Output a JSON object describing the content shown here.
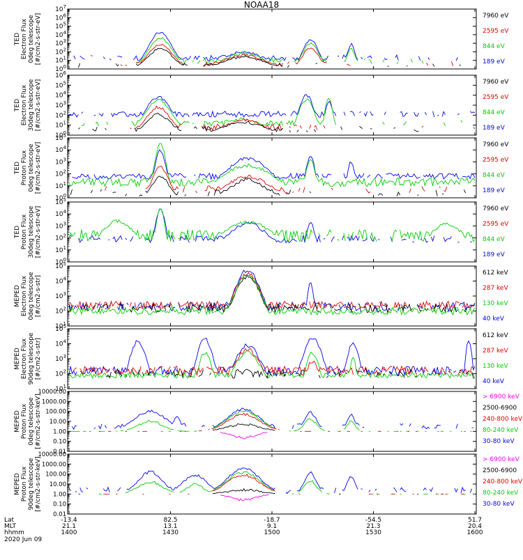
{
  "title": "NOAA18",
  "date": "2020 Jun 09",
  "axis_rows": [
    {
      "name": "Lat",
      "values": [
        "-13.4",
        "82.5",
        "-18.7",
        "-54.5",
        "51.7"
      ]
    },
    {
      "name": "MLT",
      "values": [
        "21.1",
        "13.1",
        "9.1",
        "21.3",
        "20.4"
      ]
    },
    {
      "name": "hhmm",
      "values": [
        "1400",
        "1430",
        "1500",
        "1530",
        "1600"
      ]
    }
  ],
  "colors": {
    "black": "#000000",
    "red": "#dd0000",
    "green": "#00cc00",
    "blue": "#0000ee",
    "magenta": "#ee00ee"
  },
  "chart_data": [
    {
      "type": "line",
      "ylabel": [
        "TED",
        "Electron Flux",
        "0deg telescope",
        "[#/cm2-s-str-eV]"
      ],
      "log": true,
      "ylim_exp": [
        0,
        7
      ],
      "ticks": [
        "10^0",
        "10^1",
        "10^2",
        "10^3",
        "10^4",
        "10^5",
        "10^6",
        "10^7"
      ],
      "legend": [
        {
          "label": "7960 eV",
          "color": "#000000"
        },
        {
          "label": "2595 eV",
          "color": "#dd0000"
        },
        {
          "label": "844 eV",
          "color": "#00cc00"
        },
        {
          "label": "189 eV",
          "color": "#0000ee"
        }
      ],
      "series": [
        {
          "color": "#0000ee",
          "base": 1.3,
          "noise": 0.35,
          "density": 0.5,
          "peaks": [
            [
              0.225,
              4.3,
              0.03
            ],
            [
              0.595,
              3.4,
              0.02
            ],
            [
              0.695,
              2.9,
              0.01
            ],
            [
              0.43,
              2.0,
              0.05
            ]
          ]
        },
        {
          "color": "#00cc00",
          "base": 0.9,
          "noise": 0.35,
          "density": 0.3,
          "peaks": [
            [
              0.225,
              3.6,
              0.03
            ],
            [
              0.595,
              3.0,
              0.02
            ],
            [
              0.695,
              2.4,
              0.01
            ],
            [
              0.43,
              1.8,
              0.05
            ]
          ]
        },
        {
          "color": "#dd0000",
          "base": 0.6,
          "noise": 0.3,
          "density": 0.2,
          "peaks": [
            [
              0.225,
              2.9,
              0.03
            ],
            [
              0.595,
              2.5,
              0.02
            ],
            [
              0.43,
              1.6,
              0.05
            ]
          ]
        },
        {
          "color": "#000000",
          "base": 0.4,
          "noise": 0.3,
          "density": 0.25,
          "peaks": [
            [
              0.225,
              2.4,
              0.03
            ],
            [
              0.43,
              1.4,
              0.05
            ]
          ]
        }
      ]
    },
    {
      "type": "line",
      "ylabel": [
        "TED",
        "Electron Flux",
        "30deg telescope",
        "[#/cm2-s-str-eV]"
      ],
      "log": true,
      "ylim_exp": [
        0,
        6
      ],
      "ticks": [
        "10^0",
        "10^1",
        "10^2",
        "10^3",
        "10^4",
        "10^5",
        "10^6"
      ],
      "legend": [
        {
          "label": "7960 eV",
          "color": "#000000"
        },
        {
          "label": "2595 eV",
          "color": "#dd0000"
        },
        {
          "label": "844 eV",
          "color": "#00cc00"
        },
        {
          "label": "189 eV",
          "color": "#0000ee"
        }
      ],
      "series": [
        {
          "color": "#0000ee",
          "base": 2.1,
          "noise": 0.3,
          "density": 0.7,
          "peaks": [
            [
              0.22,
              3.8,
              0.035
            ],
            [
              0.585,
              4.0,
              0.02
            ],
            [
              0.64,
              3.4,
              0.01
            ],
            [
              0.43,
              1.8,
              0.05
            ]
          ]
        },
        {
          "color": "#00cc00",
          "base": 1.2,
          "noise": 0.3,
          "density": 0.35,
          "peaks": [
            [
              0.22,
              3.5,
              0.035
            ],
            [
              0.585,
              3.6,
              0.02
            ],
            [
              0.64,
              3.7,
              0.01
            ],
            [
              0.43,
              1.6,
              0.05
            ]
          ]
        },
        {
          "color": "#dd0000",
          "base": 0.8,
          "noise": 0.3,
          "density": 0.2,
          "peaks": [
            [
              0.22,
              2.8,
              0.03
            ],
            [
              0.43,
              1.5,
              0.05
            ]
          ]
        },
        {
          "color": "#000000",
          "base": 0.6,
          "noise": 0.3,
          "density": 0.35,
          "peaks": [
            [
              0.22,
              2.1,
              0.03
            ],
            [
              0.43,
              1.3,
              0.05
            ]
          ]
        }
      ]
    },
    {
      "type": "line",
      "ylabel": [
        "TED",
        "Proton Flux",
        "0deg telescope",
        "[#/cm2-s-str-eV]"
      ],
      "log": true,
      "ylim_exp": [
        0,
        5
      ],
      "ticks": [
        "10^0",
        "10^1",
        "10^2",
        "10^3",
        "10^4",
        "10^5"
      ],
      "legend": [
        {
          "label": "7960 eV",
          "color": "#000000"
        },
        {
          "label": "2595 eV",
          "color": "#dd0000"
        },
        {
          "label": "844 eV",
          "color": "#00cc00"
        },
        {
          "label": "189 eV",
          "color": "#0000ee"
        }
      ],
      "series": [
        {
          "color": "#0000ee",
          "base": 1.8,
          "noise": 0.25,
          "density": 0.9,
          "peaks": [
            [
              0.225,
              4.0,
              0.015
            ],
            [
              0.44,
              3.3,
              0.06
            ],
            [
              0.595,
              3.5,
              0.012
            ],
            [
              0.695,
              3.0,
              0.01
            ]
          ]
        },
        {
          "color": "#00cc00",
          "base": 1.3,
          "noise": 0.35,
          "density": 1.0,
          "peaks": [
            [
              0.225,
              4.6,
              0.015
            ],
            [
              0.44,
              2.7,
              0.07
            ],
            [
              0.595,
              3.2,
              0.012
            ]
          ]
        },
        {
          "color": "#dd0000",
          "base": 0.7,
          "noise": 0.3,
          "density": 0.3,
          "peaks": [
            [
              0.225,
              2.6,
              0.02
            ],
            [
              0.44,
              1.8,
              0.05
            ]
          ]
        },
        {
          "color": "#000000",
          "base": 0.4,
          "noise": 0.3,
          "density": 0.25,
          "peaks": [
            [
              0.225,
              1.8,
              0.02
            ],
            [
              0.44,
              1.5,
              0.04
            ]
          ]
        }
      ]
    },
    {
      "type": "line",
      "ylabel": [
        "TED",
        "Proton Flux",
        "30deg telescope",
        "[#/cm2-s-str-eV]"
      ],
      "log": true,
      "ylim_exp": [
        0,
        5
      ],
      "ticks": [
        "10^0",
        "10^1",
        "10^2",
        "10^3",
        "10^4",
        "10^5"
      ],
      "legend": [
        {
          "label": "7960 eV",
          "color": "#000000"
        },
        {
          "label": "2595 eV",
          "color": "#dd0000"
        },
        {
          "label": "844 eV",
          "color": "#00cc00"
        },
        {
          "label": "189 eV",
          "color": "#0000ee"
        }
      ],
      "series": [
        {
          "color": "#0000ee",
          "base": 1.9,
          "noise": 0.3,
          "density": 0.6,
          "peaks": [
            [
              0.225,
              4.4,
              0.015
            ],
            [
              0.44,
              3.2,
              0.06
            ],
            [
              0.595,
              3.3,
              0.012
            ]
          ]
        },
        {
          "color": "#00cc00",
          "base": 2.2,
          "noise": 0.5,
          "density": 0.7,
          "peaks": [
            [
              0.12,
              3.4,
              0.05
            ],
            [
              0.225,
              4.6,
              0.012
            ],
            [
              0.44,
              3.3,
              0.08
            ],
            [
              0.93,
              3.2,
              0.05
            ]
          ]
        },
        {
          "color": "#000000",
          "base": 0.3,
          "noise": 0.2,
          "density": 0.02,
          "peaks": []
        }
      ]
    },
    {
      "type": "line",
      "ylabel": [
        "MEPED",
        "Electron Flux",
        "0deg telescope",
        "[#/cm2-s-str]"
      ],
      "log": true,
      "ylim_exp": [
        1,
        5
      ],
      "ticks": [
        "10^1",
        "10^2",
        "10^3",
        "10^4",
        "10^5"
      ],
      "legend": [
        {
          "label": "612 keV",
          "color": "#000000"
        },
        {
          "label": "287 keV",
          "color": "#dd0000"
        },
        {
          "label": "130 keV",
          "color": "#00cc00"
        },
        {
          "label": "40 keV",
          "color": "#0000ee"
        }
      ],
      "series": [
        {
          "color": "#0000ee",
          "base": 2.3,
          "noise": 0.3,
          "density": 0.8,
          "peaks": [
            [
              0.44,
              4.7,
              0.04
            ],
            [
              0.595,
              4.0,
              0.01
            ]
          ]
        },
        {
          "color": "#dd0000",
          "base": 2.4,
          "noise": 0.25,
          "density": 0.9,
          "peaks": [
            [
              0.44,
              4.5,
              0.04
            ]
          ]
        },
        {
          "color": "#000000",
          "base": 2.2,
          "noise": 0.3,
          "density": 0.8,
          "peaks": [
            [
              0.44,
              4.3,
              0.04
            ]
          ]
        },
        {
          "color": "#00cc00",
          "base": 2.0,
          "noise": 0.25,
          "density": 1.0,
          "peaks": [
            [
              0.44,
              4.4,
              0.04
            ]
          ]
        }
      ]
    },
    {
      "type": "line",
      "ylabel": [
        "MEPED",
        "Electron Flux",
        "90deg telescope",
        "[#/cm2-s-str]"
      ],
      "log": true,
      "ylim_exp": [
        1,
        5
      ],
      "ticks": [
        "10^1",
        "10^2",
        "10^3",
        "10^4",
        "10^5"
      ],
      "legend": [
        {
          "label": "612 keV",
          "color": "#000000"
        },
        {
          "label": "287 keV",
          "color": "#dd0000"
        },
        {
          "label": "130 keV",
          "color": "#00cc00"
        },
        {
          "label": "40 keV",
          "color": "#0000ee"
        }
      ],
      "series": [
        {
          "color": "#0000ee",
          "base": 2.2,
          "noise": 0.3,
          "density": 0.9,
          "peaks": [
            [
              0.17,
              4.2,
              0.025
            ],
            [
              0.335,
              4.3,
              0.025
            ],
            [
              0.44,
              3.9,
              0.04
            ],
            [
              0.6,
              4.4,
              0.03
            ],
            [
              0.7,
              4.0,
              0.02
            ],
            [
              0.985,
              4.2,
              0.01
            ]
          ]
        },
        {
          "color": "#dd0000",
          "base": 2.2,
          "noise": 0.3,
          "density": 0.9,
          "peaks": [
            [
              0.44,
              3.6,
              0.04
            ],
            [
              0.6,
              2.8,
              0.02
            ]
          ]
        },
        {
          "color": "#00cc00",
          "base": 1.9,
          "noise": 0.2,
          "density": 1.0,
          "peaks": [
            [
              0.335,
              3.4,
              0.02
            ],
            [
              0.44,
              3.4,
              0.04
            ],
            [
              0.6,
              3.4,
              0.02
            ],
            [
              0.7,
              3.1,
              0.01
            ]
          ]
        },
        {
          "color": "#000000",
          "base": 2.0,
          "noise": 0.3,
          "density": 0.5,
          "peaks": [
            [
              0.44,
              2.3,
              0.02
            ]
          ]
        }
      ]
    },
    {
      "type": "line",
      "ylabel": [
        "MEPED",
        "Proton Flux",
        "0deg telescope",
        "[#/cm2-s-str-keV]"
      ],
      "log": true,
      "ylim_exp": [
        -2,
        4
      ],
      "ticks": [
        "0.01",
        "0.10",
        "1.00",
        "10.00",
        "100.00",
        "1000.00",
        "10000.00"
      ],
      "legend": [
        {
          "label": "> 6900 keV",
          "color": "#ee00ee"
        },
        {
          "label": "2500-6900",
          "color": "#000000"
        },
        {
          "label": "240-800 keV",
          "color": "#dd0000"
        },
        {
          "label": "80-240 keV",
          "color": "#00cc00"
        },
        {
          "label": "30-80 keV",
          "color": "#0000ee"
        }
      ],
      "series": [
        {
          "color": "#0000ee",
          "base": 0.5,
          "noise": 0.3,
          "density": 0.4,
          "peaks": [
            [
              0.2,
              2.0,
              0.04
            ],
            [
              0.265,
              1.4,
              0.01
            ],
            [
              0.43,
              2.2,
              0.04
            ],
            [
              0.595,
              1.9,
              0.015
            ],
            [
              0.695,
              1.6,
              0.01
            ]
          ]
        },
        {
          "color": "#00cc00",
          "base": -0.3,
          "noise": 0.25,
          "density": 0.5,
          "peaks": [
            [
              0.2,
              1.0,
              0.03
            ],
            [
              0.43,
              2.0,
              0.04
            ],
            [
              0.595,
              1.2,
              0.015
            ],
            [
              0.695,
              1.0,
              0.01
            ]
          ]
        },
        {
          "color": "#dd0000",
          "base": -0.9,
          "noise": 0.2,
          "density": 0.3,
          "peaks": [
            [
              0.43,
              1.7,
              0.04
            ]
          ]
        },
        {
          "color": "#000000",
          "base": -1.5,
          "noise": 0.2,
          "density": 0.1,
          "peaks": [
            [
              0.43,
              0.7,
              0.04
            ]
          ]
        },
        {
          "color": "#ee00ee",
          "base": -1.9,
          "noise": 0.2,
          "density": 0.05,
          "peaks": [
            [
              0.43,
              -0.6,
              0.03
            ]
          ]
        }
      ]
    },
    {
      "type": "line",
      "ylabel": [
        "MEPED",
        "Proton Flux",
        "90deg telescope",
        "[#/cm2-s-str-keV]"
      ],
      "log": true,
      "ylim_exp": [
        -2,
        4
      ],
      "ticks": [
        "0.01",
        "0.10",
        "1.00",
        "10.00",
        "100.00",
        "1000.00",
        "10000.00"
      ],
      "legend": [
        {
          "label": "> 6900 keV",
          "color": "#ee00ee"
        },
        {
          "label": "2500-6900",
          "color": "#000000"
        },
        {
          "label": "240-800 keV",
          "color": "#dd0000"
        },
        {
          "label": "80-240 keV",
          "color": "#00cc00"
        },
        {
          "label": "30-80 keV",
          "color": "#0000ee"
        }
      ],
      "series": [
        {
          "color": "#0000ee",
          "base": 0.4,
          "noise": 0.3,
          "density": 0.5,
          "peaks": [
            [
              0.2,
              2.2,
              0.03
            ],
            [
              0.31,
              1.9,
              0.03
            ],
            [
              0.43,
              2.6,
              0.04
            ],
            [
              0.595,
              2.1,
              0.015
            ],
            [
              0.695,
              1.8,
              0.01
            ]
          ]
        },
        {
          "color": "#00cc00",
          "base": -0.3,
          "noise": 0.25,
          "density": 0.4,
          "peaks": [
            [
              0.2,
              1.2,
              0.03
            ],
            [
              0.31,
              1.0,
              0.02
            ],
            [
              0.43,
              2.2,
              0.04
            ],
            [
              0.595,
              1.3,
              0.015
            ]
          ]
        },
        {
          "color": "#dd0000",
          "base": -0.8,
          "noise": 0.2,
          "density": 0.3,
          "peaks": [
            [
              0.43,
              1.9,
              0.04
            ]
          ]
        },
        {
          "color": "#000000",
          "base": -1.5,
          "noise": 0.2,
          "density": 0.1,
          "peaks": [
            [
              0.43,
              0.4,
              0.04
            ]
          ]
        },
        {
          "color": "#ee00ee",
          "base": -1.8,
          "noise": 0.2,
          "density": 0.05,
          "peaks": [
            [
              0.43,
              -0.6,
              0.03
            ]
          ]
        }
      ]
    }
  ]
}
